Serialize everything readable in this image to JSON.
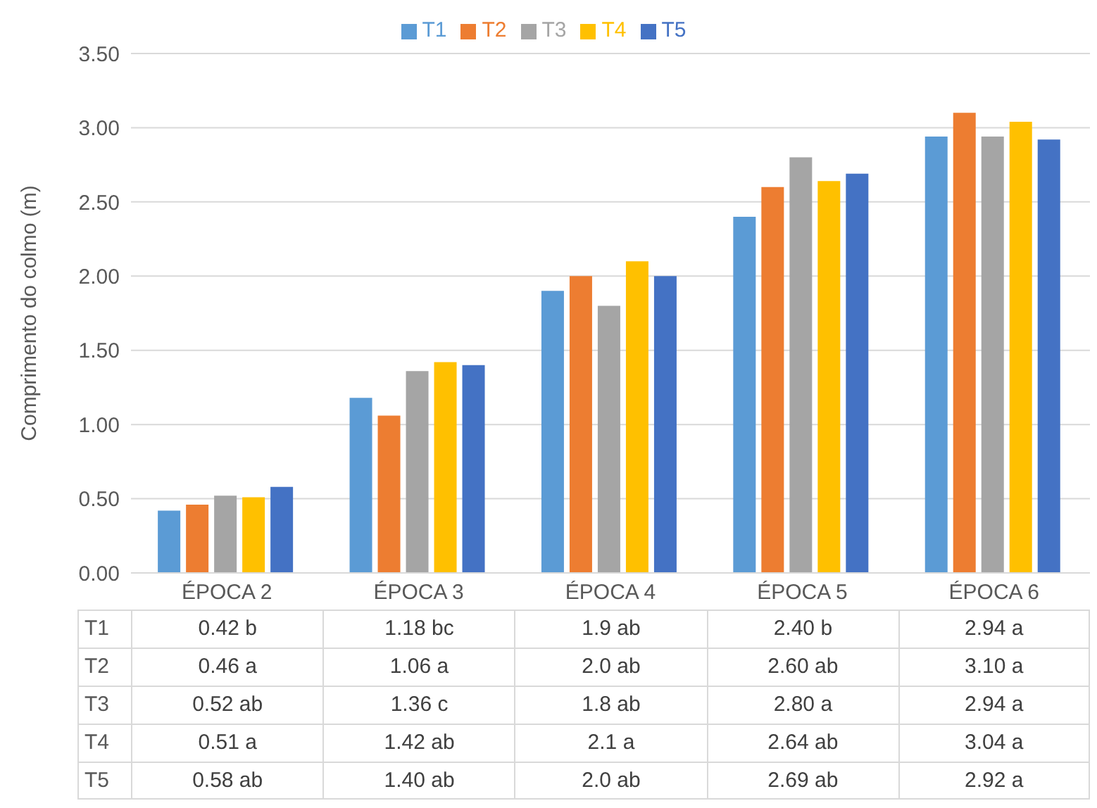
{
  "chart_data": {
    "type": "bar",
    "ylabel": "Comprimento do colmo (m)",
    "categories": [
      "ÉPOCA 2",
      "ÉPOCA 3",
      "ÉPOCA 4",
      "ÉPOCA 5",
      "ÉPOCA 6"
    ],
    "series": [
      {
        "name": "T1",
        "color": "#5b9bd5",
        "values": [
          0.42,
          1.18,
          1.9,
          2.4,
          2.94
        ],
        "value_labels": [
          "0.42 b",
          "1.18 bc",
          "1.9 ab",
          "2.40 b",
          "2.94 a"
        ]
      },
      {
        "name": "T2",
        "color": "#ed7d31",
        "values": [
          0.46,
          1.06,
          2.0,
          2.6,
          3.1
        ],
        "value_labels": [
          "0.46 a",
          "1.06 a",
          "2.0 ab",
          "2.60 ab",
          "3.10 a"
        ]
      },
      {
        "name": "T3",
        "color": "#a5a5a5",
        "values": [
          0.52,
          1.36,
          1.8,
          2.8,
          2.94
        ],
        "value_labels": [
          "0.52 ab",
          "1.36 c",
          "1.8 ab",
          "2.80 a",
          "2.94 a"
        ]
      },
      {
        "name": "T4",
        "color": "#ffc000",
        "values": [
          0.51,
          1.42,
          2.1,
          2.64,
          3.04
        ],
        "value_labels": [
          "0.51 a",
          "1.42 ab",
          "2.1 a",
          "2.64 ab",
          "3.04 a"
        ]
      },
      {
        "name": "T5",
        "color": "#4472c4",
        "values": [
          0.58,
          1.4,
          2.0,
          2.69,
          2.92
        ],
        "value_labels": [
          "0.58 ab",
          "1.40 ab",
          "2.0 ab",
          "2.69 ab",
          "2.92 a"
        ]
      }
    ],
    "ylim": [
      0,
      3.5
    ],
    "yticks": [
      {
        "value": 0,
        "label": "0.00"
      },
      {
        "value": 0.5,
        "label": "0.50"
      },
      {
        "value": 1,
        "label": "1.00"
      },
      {
        "value": 1.5,
        "label": "1.50"
      },
      {
        "value": 2,
        "label": "2.00"
      },
      {
        "value": 2.5,
        "label": "2.50"
      },
      {
        "value": 3,
        "label": "3.00"
      },
      {
        "value": 3.5,
        "label": "3.50"
      }
    ],
    "grid": "y",
    "legend": "top"
  }
}
